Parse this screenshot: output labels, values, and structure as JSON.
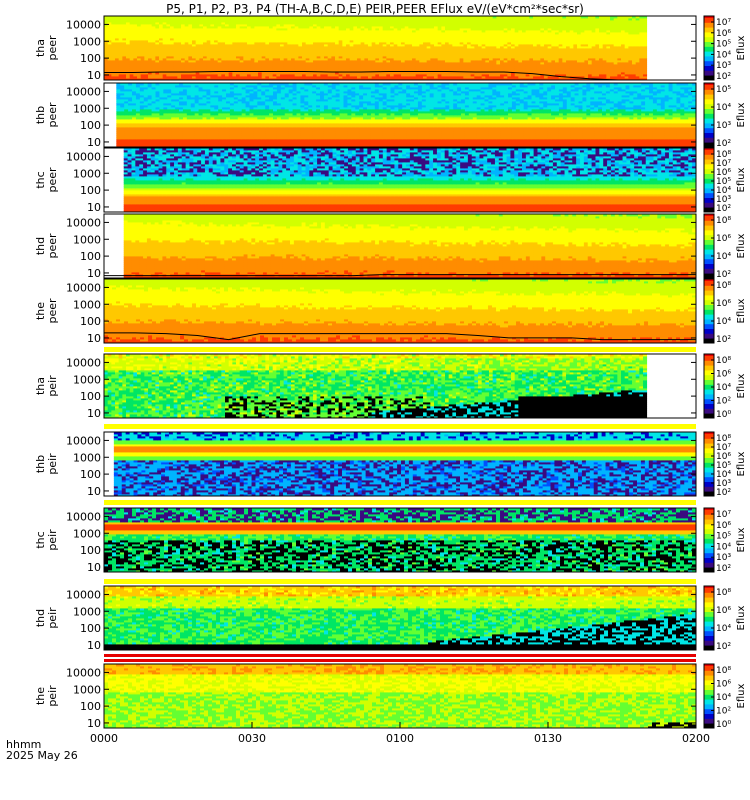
{
  "title": "P5, P1, P2, P3, P4 (TH-A,B,C,D,E) PEIR,PEER EFlux eV/(eV*cm²*sec*sr)",
  "footer": {
    "label1": "hhmm",
    "label2": "2025 May 26"
  },
  "colors": {
    "colormap": [
      "#000000",
      "#3a0a80",
      "#0000c8",
      "#0050ff",
      "#00b4ff",
      "#00e6e6",
      "#00e664",
      "#64ff32",
      "#d2ff00",
      "#ffff00",
      "#ffc800",
      "#ff8c00",
      "#ff3c00",
      "#e60000"
    ]
  },
  "chart_data": {
    "type": "heatmap",
    "xlabel": "hhmm",
    "x_ticks": [
      "0000",
      "0030",
      "0100",
      "0130",
      "0200"
    ],
    "xlim_minutes": [
      0,
      120
    ],
    "y_ticks": [
      "10",
      "100",
      "1000",
      "10000"
    ],
    "y_scale": "log",
    "colorbar_label": "Eflux",
    "panels": [
      {
        "probe": "tha",
        "species": "peer",
        "ylabel": [
          "tha",
          "peer"
        ],
        "colorbar_ticks": [
          "10²",
          "10³",
          "10⁴",
          "10⁵",
          "10⁶",
          "10⁷"
        ],
        "data_end_minutes": 110,
        "style": "electron_warm",
        "overlay": [
          14,
          14,
          15,
          15,
          16,
          16,
          16,
          16,
          15,
          15,
          16,
          16,
          16,
          15,
          15,
          12,
          8,
          6,
          5,
          5
        ]
      },
      {
        "probe": "thb",
        "species": "peer",
        "ylabel": [
          "thb",
          "peer"
        ],
        "colorbar_ticks": [
          "10²",
          "10³",
          "10⁴",
          "10⁵"
        ],
        "data_start_minutes": 2.5,
        "style": "electron_banded"
      },
      {
        "probe": "thc",
        "species": "peer",
        "ylabel": [
          "thc",
          "peer"
        ],
        "colorbar_ticks": [
          "10²",
          "10³",
          "10⁴",
          "10⁵",
          "10⁶",
          "10⁷",
          "10⁸"
        ],
        "data_start_minutes": 4,
        "style": "electron_noisy"
      },
      {
        "probe": "thd",
        "species": "peer",
        "ylabel": [
          "thd",
          "peer"
        ],
        "colorbar_ticks": [
          "10²",
          "10⁴",
          "10⁶",
          "10⁸"
        ],
        "data_start_minutes": 4,
        "style": "electron_warm",
        "overlay": [
          7,
          7,
          7,
          7,
          7,
          7,
          7,
          7,
          7,
          8,
          8,
          8,
          8,
          8,
          8,
          8,
          8,
          8,
          8,
          8
        ]
      },
      {
        "probe": "the",
        "species": "peer",
        "ylabel": [
          "the",
          "peer"
        ],
        "colorbar_ticks": [
          "10²",
          "10⁴",
          "10⁶",
          "10⁸"
        ],
        "style": "electron_warm",
        "overlay": [
          20,
          20,
          18,
          14,
          8,
          18,
          18,
          18,
          18,
          18,
          18,
          18,
          14,
          10,
          10,
          10,
          8,
          8,
          8,
          8
        ]
      },
      {
        "probe": "tha",
        "species": "peir",
        "ylabel": [
          "tha",
          "peir"
        ],
        "colorbar_ticks": [
          "10⁰",
          "10²",
          "10⁴",
          "10⁶",
          "10⁸"
        ],
        "data_end_minutes": 110,
        "style": "ion_a"
      },
      {
        "probe": "thb",
        "species": "peir",
        "ylabel": [
          "thb",
          "peir"
        ],
        "colorbar_ticks": [
          "10²",
          "10³",
          "10⁴",
          "10⁵",
          "10⁶",
          "10⁷",
          "10⁸"
        ],
        "data_start_minutes": 2,
        "style": "ion_b"
      },
      {
        "probe": "thc",
        "species": "peir",
        "ylabel": [
          "thc",
          "peir"
        ],
        "colorbar_ticks": [
          "10²",
          "10³",
          "10⁴",
          "10⁵",
          "10⁶",
          "10⁷"
        ],
        "style": "ion_c"
      },
      {
        "probe": "thd",
        "species": "peir",
        "ylabel": [
          "thd",
          "peir"
        ],
        "colorbar_ticks": [
          "10²",
          "10⁴",
          "10⁶",
          "10⁸"
        ],
        "style": "ion_d"
      },
      {
        "probe": "the",
        "species": "peir",
        "ylabel": [
          "the",
          "peir"
        ],
        "colorbar_ticks": [
          "10⁰",
          "10²",
          "10⁴",
          "10⁶",
          "10⁸"
        ],
        "style": "ion_e"
      }
    ]
  }
}
